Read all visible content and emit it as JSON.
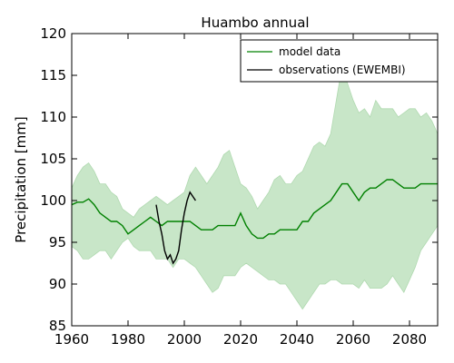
{
  "chart_data": {
    "type": "line",
    "title": "Huambo annual",
    "xlabel": "",
    "ylabel": "Precipitation [mm]",
    "xlim": [
      1960,
      2090
    ],
    "ylim": [
      85,
      120
    ],
    "xticks": [
      1960,
      1980,
      2000,
      2020,
      2040,
      2060,
      2080
    ],
    "yticks": [
      85,
      90,
      95,
      100,
      105,
      110,
      115,
      120
    ],
    "legend_position": "top-right",
    "grid": false,
    "band": {
      "color": "#c8e6c8",
      "x": [
        1960,
        1962,
        1964,
        1966,
        1968,
        1970,
        1972,
        1974,
        1976,
        1978,
        1980,
        1982,
        1984,
        1986,
        1988,
        1990,
        1992,
        1994,
        1996,
        1998,
        2000,
        2002,
        2004,
        2006,
        2008,
        2010,
        2012,
        2014,
        2016,
        2018,
        2020,
        2022,
        2024,
        2026,
        2028,
        2030,
        2032,
        2034,
        2036,
        2038,
        2040,
        2042,
        2044,
        2046,
        2048,
        2050,
        2052,
        2054,
        2056,
        2058,
        2060,
        2062,
        2064,
        2066,
        2068,
        2070,
        2072,
        2074,
        2076,
        2078,
        2080,
        2082,
        2084,
        2086,
        2088,
        2090
      ],
      "upper": [
        101.5,
        103,
        104,
        104.5,
        103.5,
        102,
        102,
        101,
        100.5,
        99,
        98.5,
        98,
        99,
        99.5,
        100,
        100.5,
        100,
        99.5,
        100,
        100.5,
        101,
        103,
        104,
        103,
        102,
        103,
        104,
        105.5,
        106,
        104,
        102,
        101.5,
        100.5,
        99,
        100,
        101,
        102.5,
        103,
        102,
        102,
        103,
        103.5,
        105,
        106.5,
        107,
        106.5,
        108,
        112,
        116,
        114,
        112,
        110.5,
        111,
        110,
        112,
        111,
        111,
        111,
        110,
        110.5,
        111,
        111,
        110,
        110.5,
        109.5,
        108
      ],
      "lower": [
        94.5,
        94,
        93,
        93,
        93.5,
        94,
        94,
        93,
        94,
        95,
        95.5,
        94.5,
        94,
        94,
        94,
        93,
        93,
        93,
        92,
        93,
        93,
        92.5,
        92,
        91,
        90,
        89,
        89.5,
        91,
        91,
        91,
        92,
        92.5,
        92,
        91.5,
        91,
        90.5,
        90.5,
        90,
        90,
        89,
        88,
        87,
        88,
        89,
        90,
        90,
        90.5,
        90.5,
        90,
        90,
        90,
        89.5,
        90.5,
        89.5,
        89.5,
        89.5,
        90,
        91,
        90,
        89,
        90.5,
        92,
        94,
        95,
        96,
        97
      ]
    },
    "series": [
      {
        "name": "model data",
        "color": "#008000",
        "x": [
          1960,
          1962,
          1964,
          1966,
          1968,
          1970,
          1972,
          1974,
          1976,
          1978,
          1980,
          1982,
          1984,
          1986,
          1988,
          1990,
          1992,
          1994,
          1996,
          1998,
          2000,
          2002,
          2004,
          2006,
          2008,
          2010,
          2012,
          2014,
          2016,
          2018,
          2020,
          2022,
          2024,
          2026,
          2028,
          2030,
          2032,
          2034,
          2036,
          2038,
          2040,
          2042,
          2044,
          2046,
          2048,
          2050,
          2052,
          2054,
          2056,
          2058,
          2060,
          2062,
          2064,
          2066,
          2068,
          2070,
          2072,
          2074,
          2076,
          2078,
          2080,
          2082,
          2084,
          2086,
          2088,
          2090
        ],
        "values": [
          99.5,
          99.8,
          99.8,
          100.2,
          99.5,
          98.5,
          98,
          97.5,
          97.5,
          97,
          96,
          96.5,
          97,
          97.5,
          98,
          97.5,
          97,
          97.5,
          97.5,
          97.5,
          97.5,
          97.5,
          97,
          96.5,
          96.5,
          96.5,
          97,
          97,
          97,
          97,
          98.5,
          97,
          96,
          95.5,
          95.5,
          96,
          96,
          96.5,
          96.5,
          96.5,
          96.5,
          97.5,
          97.5,
          98.5,
          99,
          99.5,
          100,
          101,
          102,
          102,
          101,
          100,
          101,
          101.5,
          101.5,
          102,
          102.5,
          102.5,
          102,
          101.5,
          101.5,
          101.5,
          102,
          102,
          102,
          102
        ]
      },
      {
        "name": "observations (EWEMBI)",
        "color": "#000000",
        "x": [
          1990,
          1991,
          1992,
          1993,
          1994,
          1995,
          1996,
          1997,
          1998,
          1999,
          2000,
          2001,
          2002,
          2003,
          2004
        ],
        "values": [
          99.5,
          97.5,
          96,
          94,
          93,
          93.5,
          92.5,
          93,
          94,
          96.5,
          98.5,
          100,
          101,
          100.5,
          100
        ]
      }
    ]
  }
}
